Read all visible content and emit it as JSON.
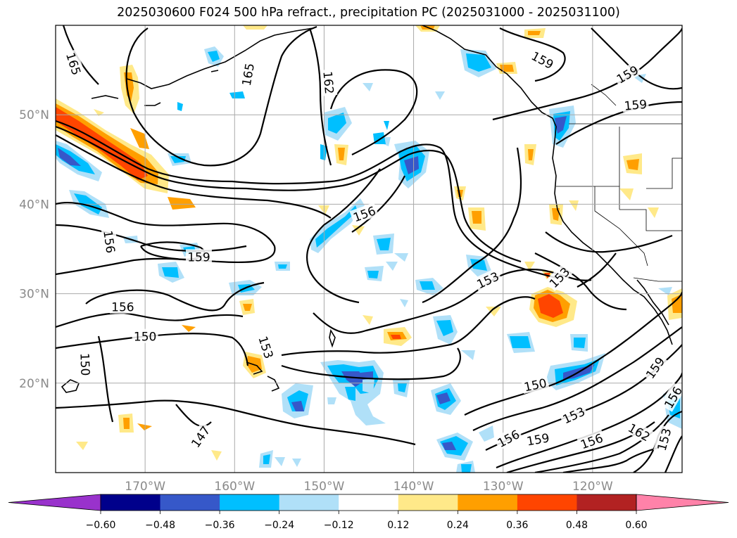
{
  "figure": {
    "title": "2025030600 F024 500 hPa refract., precipitation PC (2025031000 - 2025031100)"
  },
  "map": {
    "lon_range": [
      -180,
      -110
    ],
    "lat_range": [
      10,
      60
    ],
    "lon_labels": [
      "170°W",
      "160°W",
      "150°W",
      "140°W",
      "130°W",
      "120°W"
    ],
    "lat_labels": [
      "50°N",
      "40°N",
      "30°N",
      "20°N"
    ],
    "gridlines": true,
    "contour_labels": [
      {
        "text": "165",
        "lon": -178,
        "lat": 55.7,
        "angle": 72
      },
      {
        "text": "165",
        "lon": -158.5,
        "lat": 54.5,
        "angle": -80
      },
      {
        "text": "162",
        "lon": -149.5,
        "lat": 53.6,
        "angle": 85
      },
      {
        "text": "156",
        "lon": -174,
        "lat": 35.8,
        "angle": 82
      },
      {
        "text": "159",
        "lon": -164,
        "lat": 34.1,
        "angle": 0
      },
      {
        "text": "156",
        "lon": -172.5,
        "lat": 28.5,
        "angle": 0
      },
      {
        "text": "150",
        "lon": -170,
        "lat": 25.2,
        "angle": 0
      },
      {
        "text": "150",
        "lon": -176.7,
        "lat": 22.1,
        "angle": 88
      },
      {
        "text": "153",
        "lon": -156.5,
        "lat": 24.0,
        "angle": 72
      },
      {
        "text": "147",
        "lon": -163.8,
        "lat": 14.0,
        "angle": -55
      },
      {
        "text": "156",
        "lon": -145.5,
        "lat": 38.9,
        "angle": -20
      },
      {
        "text": "153",
        "lon": -131.7,
        "lat": 31.5,
        "angle": -25
      },
      {
        "text": "153",
        "lon": -123.7,
        "lat": 31.8,
        "angle": -45
      },
      {
        "text": "159",
        "lon": -125.6,
        "lat": 56.1,
        "angle": 28
      },
      {
        "text": "159",
        "lon": -116.1,
        "lat": 54.5,
        "angle": -30
      },
      {
        "text": "159",
        "lon": -115.2,
        "lat": 51.1,
        "angle": -5
      },
      {
        "text": "150",
        "lon": -126.4,
        "lat": 19.8,
        "angle": -12
      },
      {
        "text": "153",
        "lon": -122.1,
        "lat": 16.4,
        "angle": -25
      },
      {
        "text": "156",
        "lon": -129.4,
        "lat": 13.8,
        "angle": -28
      },
      {
        "text": "159",
        "lon": -126.1,
        "lat": 13.7,
        "angle": -10
      },
      {
        "text": "156",
        "lon": -120.1,
        "lat": 13.5,
        "angle": -20
      },
      {
        "text": "162",
        "lon": -114.8,
        "lat": 14.5,
        "angle": 30
      },
      {
        "text": "153",
        "lon": -112,
        "lat": 13.7,
        "angle": -75
      },
      {
        "text": "156",
        "lon": -111,
        "lat": 18.4,
        "angle": -60
      },
      {
        "text": "159",
        "lon": -113,
        "lat": 21.7,
        "angle": -55
      }
    ]
  },
  "colorbar": {
    "ticks": [
      "−0.60",
      "−0.48",
      "−0.36",
      "−0.24",
      "−0.12",
      "0.12",
      "0.24",
      "0.36",
      "0.48",
      "0.60"
    ],
    "levels": [
      -0.6,
      -0.48,
      -0.36,
      -0.24,
      -0.12,
      0.12,
      0.24,
      0.36,
      0.48,
      0.6
    ],
    "colors": [
      "#9932cc",
      "#00008b",
      "#3658c9",
      "#00bfff",
      "#b0e0f8",
      "#ffffff",
      "#ffe989",
      "#ff9f00",
      "#ff4500",
      "#b22222",
      "#ff82a9"
    ],
    "extend": "both"
  }
}
